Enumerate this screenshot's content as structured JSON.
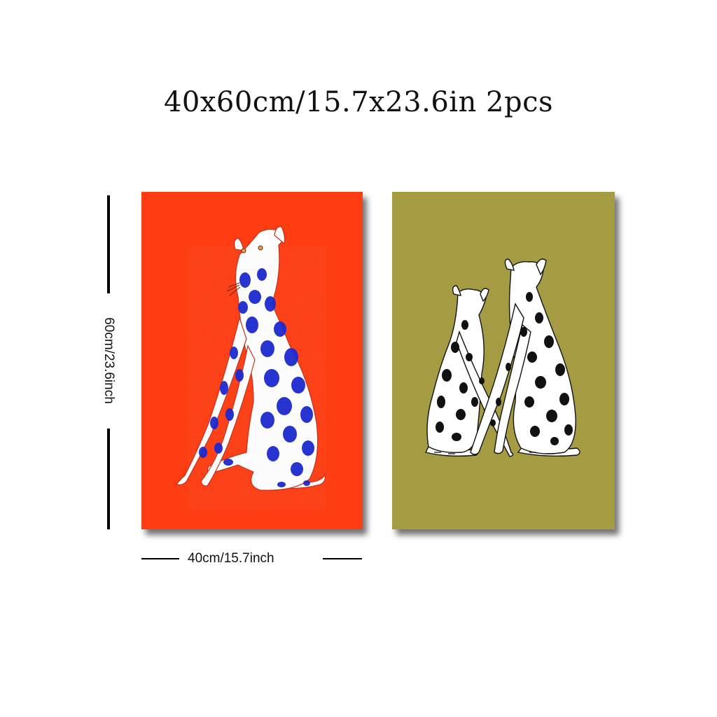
{
  "title": "40x60cm/15.7x23.6in 2pcs",
  "dimensions": {
    "height_label": "60cm/23.6inch",
    "width_label": "40cm/15.7inch"
  },
  "panels": [
    {
      "background": "#ff3d12",
      "spot_color": "#1d2bd0"
    },
    {
      "background": "#a59b42",
      "spot_color": "#111111"
    }
  ]
}
